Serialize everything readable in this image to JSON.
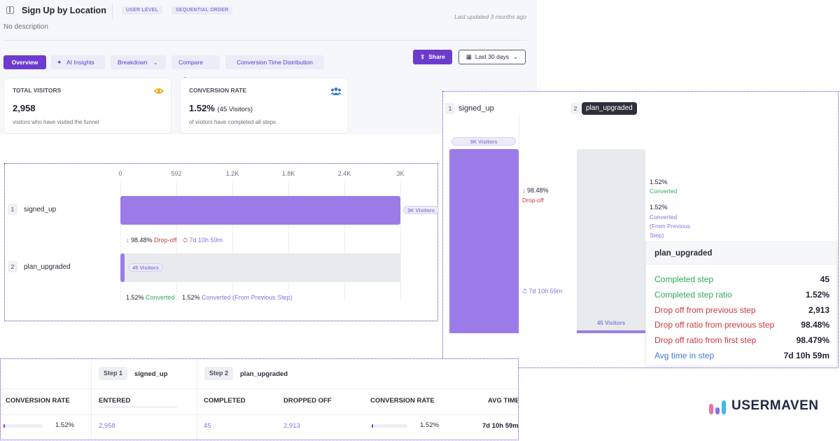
{
  "header": {
    "title": "Sign Up by Location",
    "chip_user_level": "USER LEVEL",
    "chip_sequential": "SEQUENTIAL ORDER",
    "updated": "Last updated 3 months ago",
    "description": "No description"
  },
  "tabs": [
    "Overview",
    "AI Insights",
    "Breakdown",
    "Compare",
    "Conversion Time Distribution"
  ],
  "actions": {
    "share": "Share",
    "date_range": "Last 30 days"
  },
  "cards": {
    "visitors": {
      "label": "TOTAL VISITORS",
      "value": "2,958",
      "sub": "visitors who have visited the funnel"
    },
    "conversion": {
      "label": "CONVERSION RATE",
      "value": "1.52%",
      "value_suffix": "(45 Visitors)",
      "sub": "of visitors have completed all steps"
    }
  },
  "chart_data": {
    "type": "bar",
    "orientation": "horizontal",
    "categories": [
      "signed_up",
      "plan_upgraded"
    ],
    "values": [
      2958,
      45
    ],
    "xticks": [
      "0",
      "592",
      "1.2K",
      "1.8K",
      "2.4K",
      "3K"
    ],
    "xlim": [
      0,
      2958
    ],
    "step_numbers": [
      "1",
      "2"
    ],
    "bar_labels": [
      "3K Visitors",
      "45 Visitors"
    ],
    "annotations": {
      "dropoff_value": "98.48%",
      "dropoff_label": "Drop-off",
      "time": "7d 10h 59m",
      "converted_value": "1.52%",
      "converted_label": "Converted",
      "converted_prev_value": "1.52%",
      "converted_prev_label": "Converted (From Previous Step)"
    },
    "colors": {
      "bar": "#9b7be8",
      "track": "#e9eaee",
      "accent": "#6d3ccf"
    }
  },
  "detail": {
    "step1": {
      "num": "1",
      "name": "signed_up",
      "pill": "3K Visitors",
      "dropoff_value": "98.48%",
      "dropoff_label": "Drop-off",
      "time": "7d 10h 59m"
    },
    "step2": {
      "num": "2",
      "name": "plan_upgraded",
      "pill": "45 Visitors",
      "converted_value": "1.52%",
      "converted_label": "Converted",
      "converted_prev_value": "1.52%",
      "converted_prev_line1": "Converted",
      "converted_prev_line2": "(From Previous",
      "converted_prev_line3": "Step)"
    },
    "tooltip": {
      "title": "plan_upgraded",
      "rows": [
        {
          "k": "Completed step",
          "v": "45",
          "color": "#2fa85a"
        },
        {
          "k": "Completed step ratio",
          "v": "1.52%",
          "color": "#2fa85a"
        },
        {
          "k": "Drop off from previous step",
          "v": "2,913",
          "color": "#d0383e"
        },
        {
          "k": "Drop off ratio from previous step",
          "v": "98.48%",
          "color": "#d0383e"
        },
        {
          "k": "Drop off ratio from first step",
          "v": "98.479%",
          "color": "#d0383e"
        },
        {
          "k": "Avg time in step",
          "v": "7d 10h 59m",
          "color": "#3b7ad6"
        }
      ]
    }
  },
  "table": {
    "step1_tag": "Step 1",
    "step1_name": "signed_up",
    "step2_tag": "Step 2",
    "step2_name": "plan_upgraded",
    "headers": [
      "CONVERSION RATE",
      "ENTERED",
      "COMPLETED",
      "DROPPED OFF",
      "CONVERSION RATE",
      "AVG TIME"
    ],
    "row": {
      "conv1": "1.52%",
      "entered": "2,958",
      "completed": "45",
      "dropped": "2,913",
      "conv2": "1.52%",
      "avg": "7d 10h 59m"
    },
    "conv1_fill": 0.0152,
    "conv2_fill": 0.0152
  },
  "logo": "USERMAVEN"
}
